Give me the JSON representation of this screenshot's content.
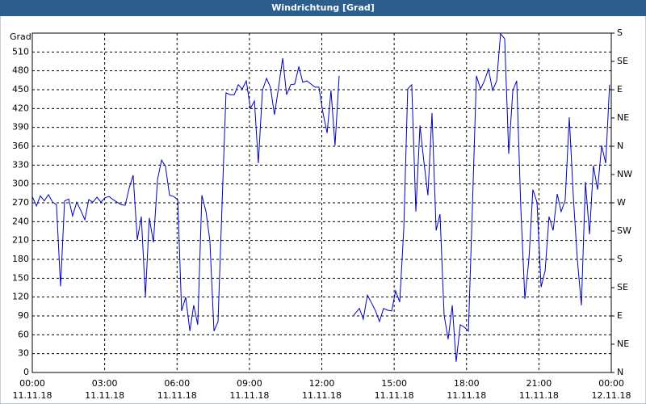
{
  "chart_data": {
    "type": "line",
    "title": "Windrichtung [Grad]",
    "y_label": "Grad",
    "x": [
      0,
      0.17,
      0.33,
      0.5,
      0.67,
      0.84,
      1.0,
      1.17,
      1.34,
      1.51,
      1.67,
      1.84,
      2.01,
      2.18,
      2.34,
      2.51,
      2.68,
      2.85,
      3.01,
      3.18,
      3.35,
      3.51,
      3.68,
      3.85,
      4.02,
      4.18,
      4.35,
      4.52,
      4.69,
      4.85,
      5.02,
      5.19,
      5.36,
      5.52,
      5.69,
      5.86,
      6.03,
      6.19,
      6.36,
      6.53,
      6.69,
      6.86,
      7.03,
      7.2,
      7.36,
      7.53,
      7.7,
      7.87,
      8.03,
      8.2,
      8.37,
      8.54,
      8.7,
      8.87,
      9.04,
      9.21,
      9.37,
      9.54,
      9.71,
      9.87,
      10.04,
      10.21,
      10.38,
      10.54,
      10.71,
      10.88,
      11.05,
      11.21,
      11.38,
      11.55,
      11.72,
      11.88,
      12.05,
      12.22,
      12.38,
      12.55,
      12.72,
      13.0,
      13.32,
      13.56,
      13.72,
      13.89,
      14.06,
      14.23,
      14.39,
      14.56,
      14.73,
      14.9,
      15.06,
      15.23,
      15.4,
      15.56,
      15.73,
      15.9,
      16.07,
      16.23,
      16.4,
      16.57,
      16.74,
      16.9,
      17.07,
      17.24,
      17.41,
      17.57,
      17.74,
      17.91,
      18.08,
      18.24,
      18.41,
      18.58,
      18.74,
      18.91,
      19.08,
      19.25,
      19.41,
      19.58,
      19.75,
      19.92,
      20.08,
      20.25,
      20.42,
      20.59,
      20.75,
      20.92,
      21.09,
      21.26,
      21.42,
      21.59,
      21.76,
      21.92,
      22.09,
      22.26,
      22.43,
      22.59,
      22.76,
      22.93,
      23.1,
      23.26,
      23.43,
      23.6,
      23.77,
      23.93
    ],
    "series": [
      {
        "name": "Windrichtung",
        "color": "#0000c0",
        "values": [
          280,
          265,
          281,
          273,
          283,
          271,
          267,
          137,
          273,
          276,
          249,
          271,
          258,
          243,
          275,
          271,
          279,
          271,
          278,
          280,
          275,
          271,
          267,
          266,
          294,
          314,
          211,
          248,
          121,
          246,
          207,
          307,
          338,
          328,
          282,
          280,
          275,
          98,
          120,
          66,
          107,
          76,
          282,
          256,
          210,
          66,
          81,
          271,
          445,
          442,
          442,
          458,
          451,
          464,
          420,
          432,
          333,
          449,
          468,
          454,
          410,
          454,
          500,
          442,
          458,
          459,
          487,
          462,
          464,
          459,
          454,
          454,
          413,
          381,
          449,
          361,
          472,
          null,
          91,
          102,
          85,
          123,
          111,
          98,
          81,
          102,
          99,
          98,
          130,
          112,
          230,
          451,
          458,
          256,
          393,
          336,
          282,
          413,
          226,
          252,
          91,
          53,
          107,
          17,
          76,
          72,
          66,
          258,
          472,
          451,
          464,
          483,
          449,
          464,
          539,
          531,
          348,
          449,
          464,
          261,
          117,
          181,
          291,
          271,
          136,
          162,
          248,
          226,
          284,
          256,
          274,
          406,
          278,
          181,
          107,
          303,
          220,
          329,
          291,
          361,
          333,
          458
        ]
      }
    ],
    "xlim": [
      0,
      24
    ],
    "xticks": [
      {
        "value": 0,
        "label": "00:00"
      },
      {
        "value": 3,
        "label": "03:00"
      },
      {
        "value": 6,
        "label": "06:00"
      },
      {
        "value": 9,
        "label": "09:00"
      },
      {
        "value": 12,
        "label": "12:00"
      },
      {
        "value": 15,
        "label": "15:00"
      },
      {
        "value": 18,
        "label": "18:00"
      },
      {
        "value": 21,
        "label": "21:00"
      },
      {
        "value": 24,
        "label": "00:00"
      }
    ],
    "x_date_labels": [
      "11.11.18",
      "11.11.18",
      "11.11.18",
      "11.11.18",
      "11.11.18",
      "11.11.18",
      "11.11.18",
      "11.11.18",
      "12.11.18"
    ],
    "ylim": [
      0,
      540
    ],
    "yticks": [
      0,
      30,
      60,
      90,
      120,
      150,
      180,
      210,
      240,
      270,
      300,
      330,
      360,
      390,
      420,
      450,
      480,
      510
    ],
    "y2lim": [
      0,
      540
    ],
    "y2ticks": [
      {
        "value": 0,
        "label": "N"
      },
      {
        "value": 45,
        "label": "NE"
      },
      {
        "value": 90,
        "label": "E"
      },
      {
        "value": 135,
        "label": "SE"
      },
      {
        "value": 180,
        "label": "S"
      },
      {
        "value": 225,
        "label": "SW"
      },
      {
        "value": 270,
        "label": "W"
      },
      {
        "value": 315,
        "label": "NW"
      },
      {
        "value": 360,
        "label": "N"
      },
      {
        "value": 405,
        "label": "NE"
      },
      {
        "value": 450,
        "label": "E"
      },
      {
        "value": 495,
        "label": "SE"
      },
      {
        "value": 540,
        "label": "S"
      }
    ],
    "grid": true
  }
}
